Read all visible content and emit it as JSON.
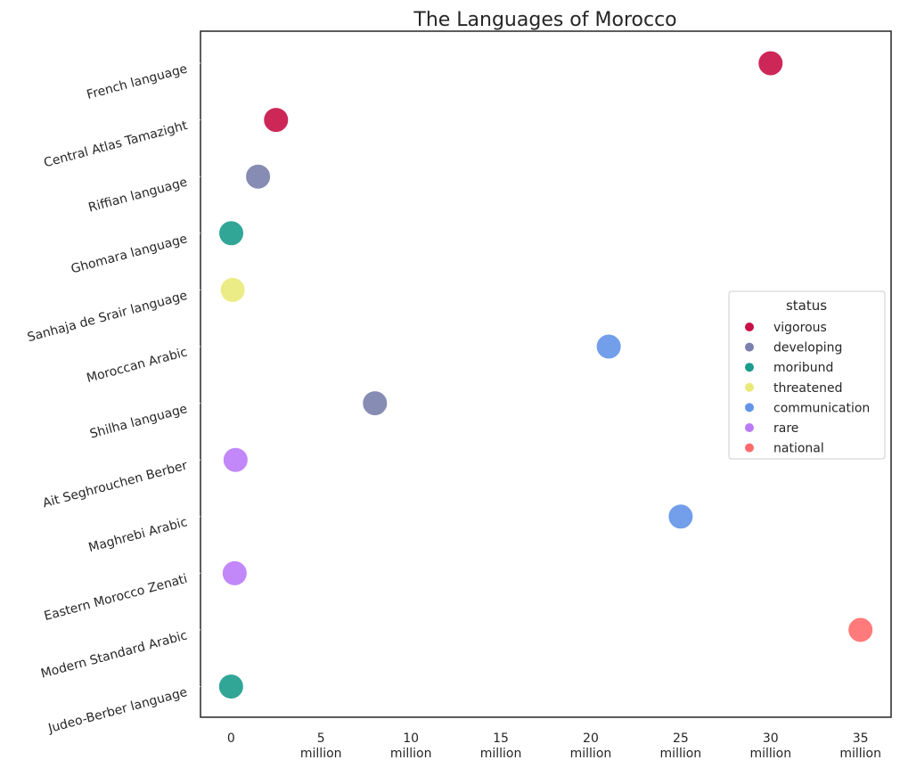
{
  "chart_data": {
    "type": "scatter",
    "title": "The Languages of Morocco",
    "xlabel": "",
    "ylabel": "",
    "xlim": [
      -1.7,
      36.7
    ],
    "x_ticks": [
      {
        "value": 0,
        "lines": [
          "0"
        ]
      },
      {
        "value": 5,
        "lines": [
          "5",
          "million"
        ]
      },
      {
        "value": 10,
        "lines": [
          "10",
          "million"
        ]
      },
      {
        "value": 15,
        "lines": [
          "15",
          "million"
        ]
      },
      {
        "value": 20,
        "lines": [
          "20",
          "million"
        ]
      },
      {
        "value": 25,
        "lines": [
          "25",
          "million"
        ]
      },
      {
        "value": 30,
        "lines": [
          "30",
          "million"
        ]
      },
      {
        "value": 35,
        "lines": [
          "35",
          "million"
        ]
      }
    ],
    "categories": [
      "French language",
      "Central Atlas Tamazight",
      "Riffian language",
      "Ghomara language",
      "Sanhaja de Srair language",
      "Moroccan Arabic",
      "Shilha language",
      "Ait Seghrouchen Berber",
      "Maghrebi Arabic",
      "Eastern Morocco Zenati",
      "Modern Standard Arabic",
      "Judeo-Berber language"
    ],
    "points": [
      {
        "language": "French language",
        "speakers_million": 30,
        "status": "vigorous"
      },
      {
        "language": "Central Atlas Tamazight",
        "speakers_million": 2.5,
        "status": "vigorous"
      },
      {
        "language": "Riffian language",
        "speakers_million": 1.5,
        "status": "developing"
      },
      {
        "language": "Ghomara language",
        "speakers_million": 0.01,
        "status": "moribund"
      },
      {
        "language": "Sanhaja de Srair language",
        "speakers_million": 0.09,
        "status": "threatened"
      },
      {
        "language": "Moroccan Arabic",
        "speakers_million": 21,
        "status": "communication"
      },
      {
        "language": "Shilha language",
        "speakers_million": 8,
        "status": "developing"
      },
      {
        "language": "Ait Seghrouchen Berber",
        "speakers_million": 0.25,
        "status": "rare"
      },
      {
        "language": "Maghrebi Arabic",
        "speakers_million": 25,
        "status": "communication"
      },
      {
        "language": "Eastern Morocco Zenati",
        "speakers_million": 0.2,
        "status": "rare"
      },
      {
        "language": "Modern Standard Arabic",
        "speakers_million": 35,
        "status": "national"
      },
      {
        "language": "Judeo-Berber language",
        "speakers_million": 0.002,
        "status": "moribund"
      }
    ],
    "legend": {
      "title": "status",
      "placement": "right",
      "entries": [
        {
          "label": "vigorous",
          "color": "#c80f46"
        },
        {
          "label": "developing",
          "color": "#7a7fac"
        },
        {
          "label": "moribund",
          "color": "#1b9c8c"
        },
        {
          "label": "threatened",
          "color": "#eaea7a"
        },
        {
          "label": "communication",
          "color": "#6394e8"
        },
        {
          "label": "rare",
          "color": "#bb7af8"
        },
        {
          "label": "national",
          "color": "#ff6b6b"
        }
      ]
    },
    "grid": false
  }
}
